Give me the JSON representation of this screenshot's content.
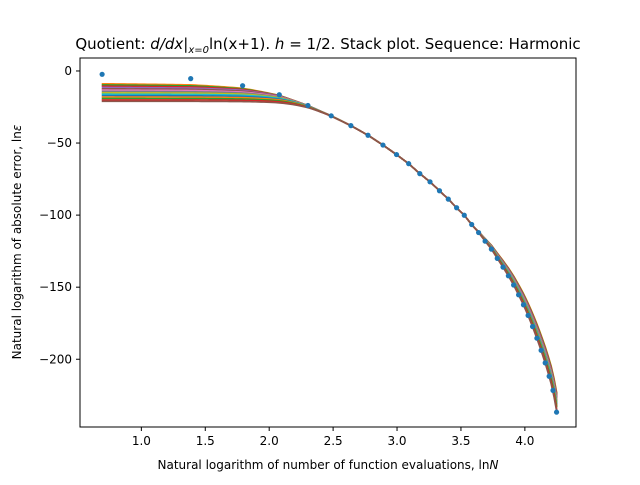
{
  "chart_data": {
    "type": "line",
    "title": "Quotient: d/dx|x=0 ln(x+1). h=1/2. Stack plot. Sequence: Harmonic",
    "title_parts": {
      "prefix": "Quotient: ",
      "d_over_dx": "d/dx|",
      "subscript": "x=0",
      "func": "ln(x+1). ",
      "h": "h",
      "h_value": " = 1/2. Stack plot. Sequence: Harmonic"
    },
    "xlabel": "Natural logarithm of number of function evaluations, lnN",
    "xlabel_parts": {
      "text": "Natural logarithm of number of function evaluations, ln",
      "var": "N"
    },
    "ylabel": "Natural logarithm of absolute error, lnε",
    "ylabel_parts": {
      "text": "Natural logarithm of absolute error, ln",
      "var": "ε"
    },
    "xlim": [
      0.52,
      4.4
    ],
    "ylim": [
      -247,
      9
    ],
    "xticks": [
      1.0,
      1.5,
      2.0,
      2.5,
      3.0,
      3.5,
      4.0
    ],
    "xtick_labels": [
      "1.0",
      "1.5",
      "2.0",
      "2.5",
      "3.0",
      "3.5",
      "4.0"
    ],
    "yticks": [
      0,
      -50,
      -100,
      -150,
      -200
    ],
    "ytick_labels": [
      "0",
      "−50",
      "−100",
      "−150",
      "−200"
    ],
    "grid": false,
    "scatter_points": {
      "color": "#1f77b4",
      "x": [
        0.693,
        1.386,
        1.792,
        2.079,
        2.303,
        2.485,
        2.639,
        2.773,
        2.89,
        2.996,
        3.091,
        3.178,
        3.258,
        3.332,
        3.401,
        3.466,
        3.526,
        3.584,
        3.638,
        3.689,
        3.738,
        3.784,
        3.829,
        3.871,
        3.912,
        3.951,
        3.989,
        4.025,
        4.06,
        4.094,
        4.127,
        4.159,
        4.19,
        4.22,
        4.248
      ],
      "y": [
        -2.3,
        -5.3,
        -10.2,
        -16.5,
        -23.9,
        -31.1,
        -37.9,
        -44.6,
        -51.4,
        -58.0,
        -64.3,
        -71.2,
        -76.9,
        -83.1,
        -88.9,
        -94.9,
        -100.1,
        -106.5,
        -112.1,
        -118.1,
        -123.6,
        -130.0,
        -136.1,
        -142.1,
        -148.5,
        -155.3,
        -162.2,
        -169.6,
        -177.3,
        -185.4,
        -193.8,
        -202.5,
        -211.8,
        -221.6,
        -236.7
      ]
    },
    "curves": {
      "x_start": 0.69,
      "x_end": 4.25,
      "offsets": [
        -8,
        -9,
        -10,
        -11,
        -12,
        -13,
        -14,
        -15,
        -16,
        -17,
        -18,
        -19,
        -20,
        -21
      ],
      "end_values": [
        -222,
        -223,
        -224,
        -225,
        -226,
        -227,
        -228,
        -229,
        -230,
        -231,
        -232,
        -233,
        -235,
        -237
      ],
      "colors": [
        "#ff7f0e",
        "#2ca02c",
        "#d62728",
        "#9467bd",
        "#8c564b",
        "#e377c2",
        "#7f7f7f",
        "#bcbd22",
        "#17becf",
        "#1f77b4",
        "#ff7f0e",
        "#2ca02c",
        "#d62728",
        "#8c564b"
      ]
    }
  }
}
